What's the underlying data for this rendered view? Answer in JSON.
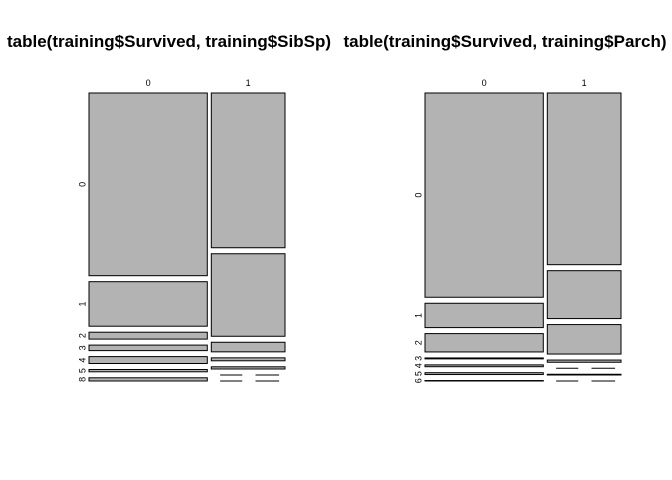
{
  "colors": {
    "tile_fill": "#b3b3b3",
    "tile_stroke": "#000000",
    "background": "#ffffff"
  },
  "chart_data": [
    {
      "type": "mosaic",
      "title": "table(training$Survived, training$SibSp)",
      "x_categories": [
        "0",
        "1"
      ],
      "y_categories": [
        "0",
        "1",
        "2",
        "3",
        "4",
        "5",
        "8"
      ],
      "y_labels": [
        "0",
        "1",
        "2",
        "3",
        "4",
        "5",
        "8"
      ],
      "counts": [
        [
          398,
          97,
          15,
          12,
          15,
          5,
          7
        ],
        [
          210,
          112,
          13,
          4,
          3,
          0,
          0
        ]
      ]
    },
    {
      "type": "mosaic",
      "title": "table(training$Survived, training$Parch)",
      "x_categories": [
        "0",
        "1"
      ],
      "y_categories": [
        "0",
        "1",
        "2",
        "3",
        "4",
        "5",
        "6"
      ],
      "y_labels": [
        "0",
        "1",
        "2",
        "3",
        "4",
        "5",
        "6"
      ],
      "counts": [
        [
          445,
          53,
          40,
          2,
          4,
          4,
          1
        ],
        [
          233,
          65,
          40,
          3,
          0,
          1,
          0
        ]
      ]
    }
  ]
}
